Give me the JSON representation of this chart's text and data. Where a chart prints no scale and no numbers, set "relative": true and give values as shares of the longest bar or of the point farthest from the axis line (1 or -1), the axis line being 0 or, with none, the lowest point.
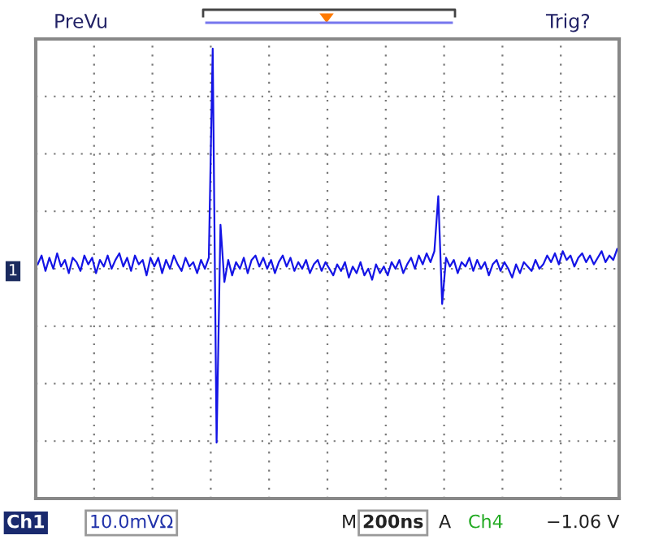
{
  "chart_data": {
    "type": "line",
    "relative": true,
    "grid": true,
    "categories": [
      null,
      null,
      null,
      null,
      null,
      null,
      null,
      null,
      null,
      null,
      null,
      null,
      null,
      null,
      null,
      null,
      null,
      null,
      null,
      null,
      null,
      null,
      null,
      null,
      null,
      null,
      null,
      null,
      null,
      null,
      null,
      null,
      null,
      null,
      null,
      null,
      null,
      null,
      null,
      null,
      null,
      null,
      null,
      null,
      null,
      null,
      null,
      null,
      null,
      null,
      null,
      null,
      null,
      null,
      null,
      null,
      null,
      null,
      null,
      null,
      null,
      null,
      null,
      null,
      null,
      null,
      null,
      null,
      null,
      null,
      null,
      null,
      null,
      null,
      null,
      null,
      null,
      null,
      null,
      null,
      null,
      null,
      null,
      null,
      null,
      null,
      null,
      null,
      null,
      null,
      null,
      null,
      null,
      null,
      null,
      null,
      null,
      null,
      null,
      null,
      null,
      null,
      null,
      null,
      null,
      null,
      null,
      null,
      null,
      null,
      null,
      null,
      null,
      null,
      null,
      null,
      null,
      null,
      null,
      null,
      null,
      null,
      null,
      null,
      null,
      null,
      null,
      null,
      null,
      null,
      null,
      null,
      null,
      null,
      null,
      null,
      null,
      null,
      null,
      null,
      null,
      null,
      null,
      null,
      null,
      null,
      null,
      null,
      null,
      null
    ],
    "series": [
      {
        "color": "#1414e6",
        "values": [
          0.02,
          0.06,
          -0.01,
          0.05,
          0.0,
          0.07,
          0.01,
          0.04,
          -0.02,
          0.05,
          0.03,
          -0.01,
          0.06,
          0.02,
          0.05,
          -0.02,
          0.04,
          0.01,
          0.06,
          0.0,
          0.04,
          0.07,
          0.01,
          0.05,
          -0.01,
          0.06,
          0.02,
          0.04,
          -0.03,
          0.05,
          0.01,
          0.05,
          -0.02,
          0.04,
          0.0,
          0.06,
          0.02,
          -0.01,
          0.05,
          0.01,
          0.03,
          -0.02,
          0.04,
          0.0,
          0.05,
          1.0,
          -0.79,
          0.2,
          -0.06,
          0.04,
          -0.03,
          0.03,
          0.0,
          0.05,
          -0.02,
          0.04,
          0.06,
          0.01,
          0.05,
          0.0,
          0.04,
          -0.02,
          0.03,
          0.06,
          0.01,
          0.05,
          -0.01,
          0.03,
          0.0,
          0.04,
          -0.02,
          0.02,
          0.04,
          -0.01,
          0.03,
          0.0,
          -0.03,
          0.02,
          -0.01,
          0.03,
          -0.04,
          0.01,
          -0.02,
          0.03,
          -0.03,
          0.0,
          -0.05,
          0.02,
          -0.02,
          0.01,
          -0.03,
          0.03,
          0.0,
          0.04,
          -0.02,
          0.02,
          0.05,
          0.0,
          0.06,
          0.02,
          0.07,
          0.03,
          0.08,
          0.33,
          -0.16,
          0.05,
          0.01,
          0.04,
          -0.02,
          0.03,
          0.01,
          0.05,
          -0.01,
          0.04,
          0.0,
          0.03,
          -0.03,
          0.02,
          0.04,
          -0.01,
          0.03,
          0.0,
          -0.04,
          0.02,
          -0.02,
          0.03,
          0.01,
          -0.01,
          0.04,
          0.0,
          0.02,
          0.06,
          0.03,
          0.07,
          0.02,
          0.08,
          0.04,
          0.06,
          0.01,
          0.05,
          0.07,
          0.03,
          0.06,
          0.02,
          0.05,
          0.08,
          0.03,
          0.06,
          0.04,
          0.09
        ]
      }
    ],
    "annotations": [
      "PreVu",
      "Trig?",
      "1",
      "Ch1",
      "10.0mVΩ",
      "M",
      "200ns",
      "A",
      "Ch4",
      "−1.06 V"
    ]
  }
}
